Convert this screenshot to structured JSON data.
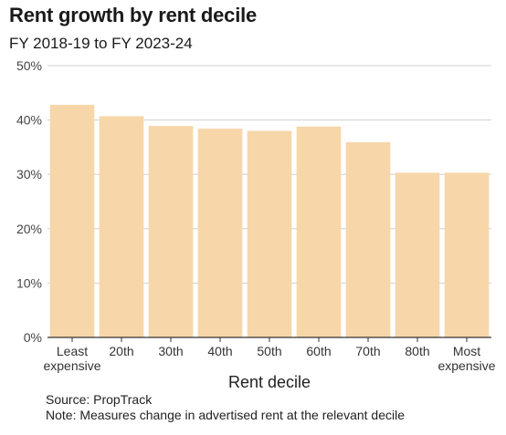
{
  "chart_data": {
    "type": "bar",
    "title": "Rent growth by rent decile",
    "subtitle": "FY 2018-19 to FY 2023-24",
    "xlabel": "Rent decile",
    "ylabel": "",
    "categories": [
      [
        "Least",
        "expensive"
      ],
      [
        "20th"
      ],
      [
        "30th"
      ],
      [
        "40th"
      ],
      [
        "50th"
      ],
      [
        "60th"
      ],
      [
        "70th"
      ],
      [
        "80th"
      ],
      [
        "Most",
        "expensive"
      ]
    ],
    "values": [
      42.8,
      40.7,
      38.9,
      38.4,
      38.0,
      38.8,
      35.9,
      30.3,
      30.3
    ],
    "ylim": [
      0,
      50
    ],
    "yticks": [
      0,
      10,
      20,
      30,
      40,
      50
    ],
    "ytick_suffix": "%",
    "grid": true,
    "legend": false,
    "colors": {
      "bar": "#f7d6a9",
      "grid": "#d0d0d0",
      "axis": "#333333",
      "text": "#1a1a1a"
    }
  },
  "footer": {
    "source": "Source: PropTrack",
    "note": "Note: Measures change in advertised rent at the relevant decile"
  }
}
